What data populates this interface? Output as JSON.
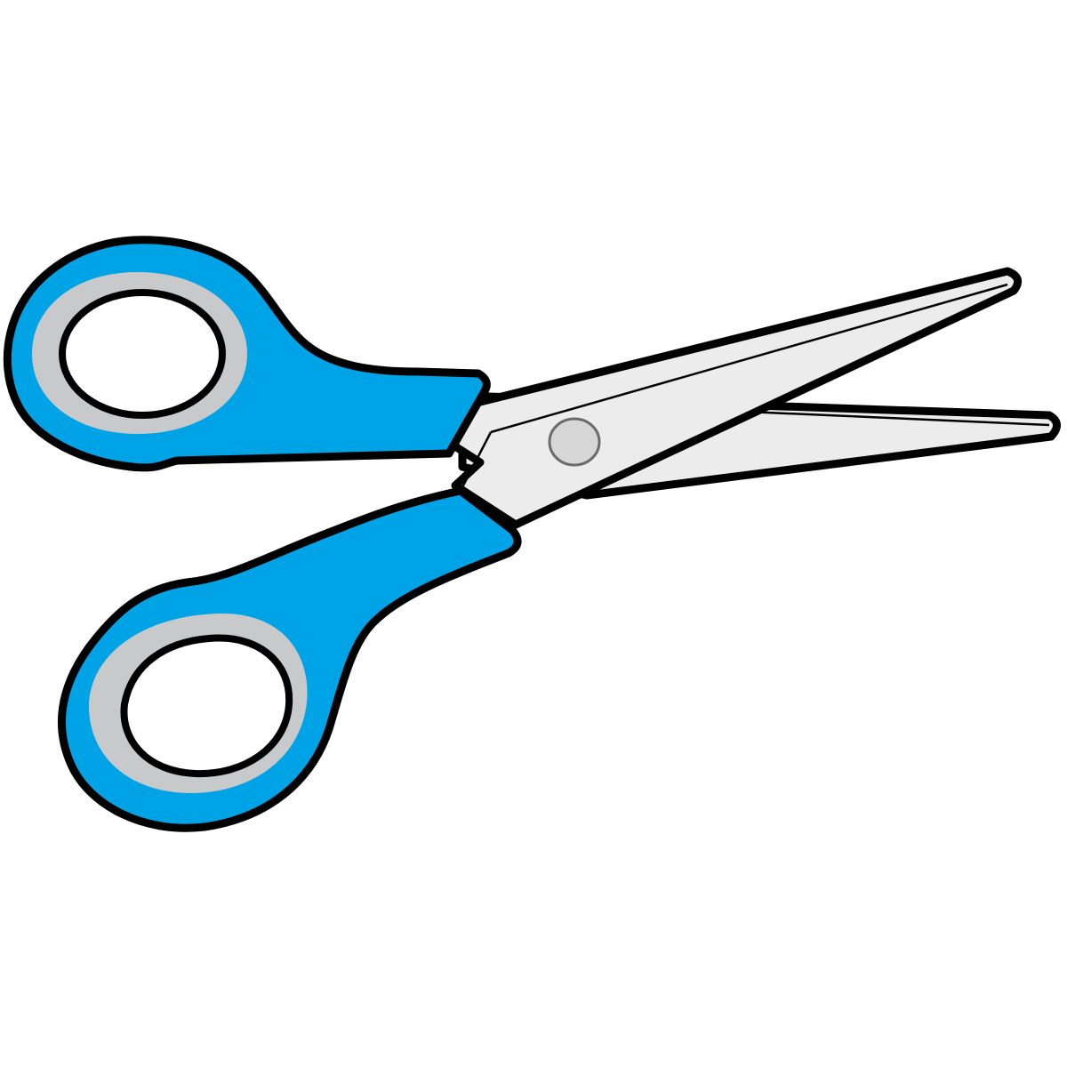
{
  "illustration": {
    "subject": "scissors-icon",
    "colors": {
      "background": "#ffffff",
      "handle": "#00a3e6",
      "handle_insert": "#c8c9ca",
      "blade": "#ececec",
      "pivot": "#d7d7d7",
      "outline": "#000000"
    }
  }
}
